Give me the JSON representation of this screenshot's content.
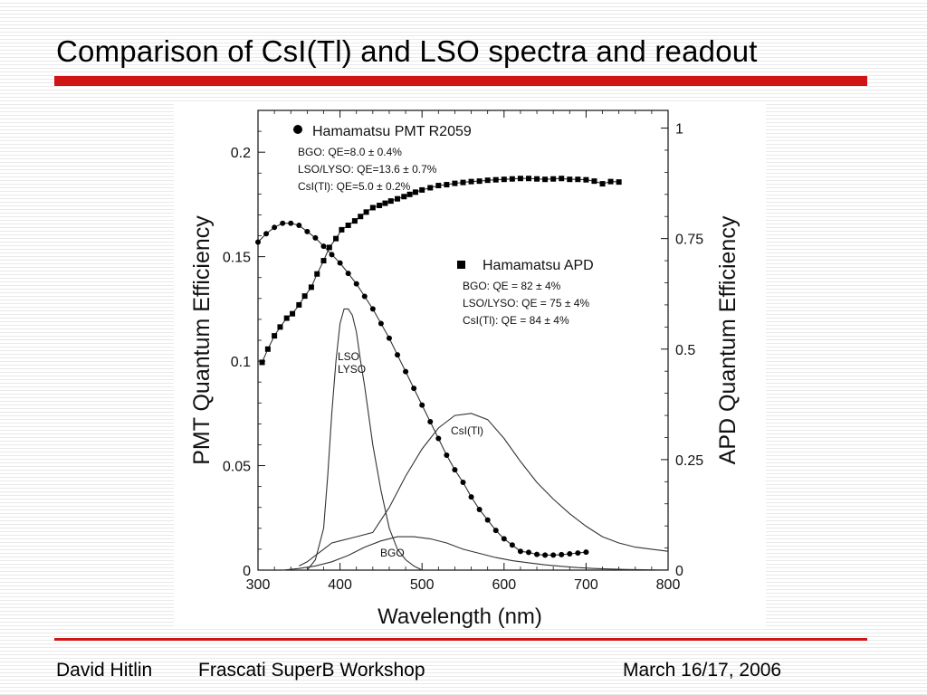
{
  "slide": {
    "title": "Comparison of CsI(Tl) and LSO spectra and readout",
    "title_color": "#d11414"
  },
  "footer": {
    "author": "David Hitlin",
    "event": "Frascati SuperB Workshop",
    "date": "March 16/17, 2006"
  },
  "chart_data": {
    "type": "line",
    "title": "",
    "xlabel": "Wavelength (nm)",
    "ylabel_left": "PMT Quantum Efficiency",
    "ylabel_right": "APD Quantum Efficiency",
    "xlim": [
      300,
      800
    ],
    "ylim_left": [
      0,
      0.22
    ],
    "ylim_right": [
      0,
      1.04
    ],
    "x_ticks": [
      300,
      400,
      500,
      600,
      700,
      800
    ],
    "x_tick_labels": [
      "300",
      "400",
      "500",
      "600",
      "700",
      "800"
    ],
    "y_left_ticks": [
      0,
      0.05,
      0.1,
      0.15,
      0.2
    ],
    "y_left_tick_labels": [
      "0",
      "0.05",
      "0.1",
      "0.15",
      "0.2"
    ],
    "y_right_ticks": [
      0,
      0.25,
      0.5,
      0.75,
      1
    ],
    "y_right_tick_labels": [
      "0",
      "0.25",
      "0.5",
      "0.75",
      "1"
    ],
    "grid": false,
    "series": [
      {
        "name": "Hamamatsu PMT R2059",
        "marker": "circle",
        "axis": "left",
        "x": [
          300,
          310,
          320,
          330,
          340,
          350,
          360,
          370,
          380,
          390,
          400,
          410,
          420,
          430,
          440,
          450,
          460,
          470,
          480,
          490,
          500,
          510,
          520,
          530,
          540,
          550,
          560,
          570,
          580,
          590,
          600,
          610,
          620,
          630,
          640,
          650,
          660,
          670,
          680,
          690,
          700
        ],
        "y": [
          0.157,
          0.161,
          0.164,
          0.166,
          0.166,
          0.165,
          0.162,
          0.159,
          0.155,
          0.151,
          0.147,
          0.142,
          0.137,
          0.131,
          0.125,
          0.118,
          0.111,
          0.103,
          0.095,
          0.087,
          0.079,
          0.071,
          0.063,
          0.055,
          0.048,
          0.042,
          0.035,
          0.029,
          0.024,
          0.019,
          0.015,
          0.012,
          0.009,
          0.0085,
          0.0075,
          0.0072,
          0.0072,
          0.0074,
          0.0078,
          0.0082,
          0.0086
        ]
      },
      {
        "name": "Hamamatsu APD",
        "marker": "square",
        "axis": "right",
        "x": [
          305,
          312,
          320,
          327,
          335,
          342,
          350,
          357,
          365,
          372,
          380,
          387,
          395,
          402,
          410,
          418,
          425,
          432,
          440,
          448,
          455,
          462,
          470,
          478,
          485,
          492,
          500,
          510,
          520,
          530,
          540,
          550,
          560,
          570,
          580,
          590,
          600,
          610,
          620,
          630,
          640,
          650,
          660,
          670,
          680,
          690,
          700,
          710,
          720,
          730,
          740
        ],
        "y": [
          0.47,
          0.5,
          0.53,
          0.55,
          0.57,
          0.58,
          0.6,
          0.62,
          0.64,
          0.67,
          0.7,
          0.73,
          0.75,
          0.77,
          0.78,
          0.79,
          0.8,
          0.81,
          0.82,
          0.825,
          0.83,
          0.835,
          0.84,
          0.845,
          0.85,
          0.855,
          0.86,
          0.865,
          0.87,
          0.872,
          0.875,
          0.877,
          0.879,
          0.88,
          0.882,
          0.883,
          0.884,
          0.885,
          0.886,
          0.886,
          0.885,
          0.884,
          0.885,
          0.886,
          0.884,
          0.884,
          0.883,
          0.88,
          0.874,
          0.879,
          0.878
        ]
      },
      {
        "name": "LSO LYSO",
        "marker": "none",
        "axis": "left",
        "x": [
          360,
          370,
          380,
          385,
          390,
          395,
          400,
          405,
          410,
          415,
          420,
          425,
          430,
          440,
          450,
          460,
          470,
          480,
          490,
          500
        ],
        "y": [
          0,
          0.005,
          0.02,
          0.045,
          0.075,
          0.1,
          0.118,
          0.125,
          0.125,
          0.122,
          0.114,
          0.1,
          0.088,
          0.06,
          0.038,
          0.02,
          0.01,
          0.005,
          0.002,
          0
        ]
      },
      {
        "name": "CsI(Tl)",
        "marker": "none",
        "axis": "left",
        "x": [
          350,
          360,
          370,
          380,
          390,
          400,
          420,
          440,
          460,
          480,
          500,
          520,
          540,
          560,
          580,
          600,
          620,
          640,
          660,
          680,
          700,
          720,
          740,
          760,
          780,
          800
        ],
        "y": [
          0.002,
          0.004,
          0.007,
          0.01,
          0.013,
          0.014,
          0.016,
          0.018,
          0.03,
          0.045,
          0.058,
          0.068,
          0.074,
          0.075,
          0.072,
          0.063,
          0.052,
          0.042,
          0.034,
          0.027,
          0.021,
          0.016,
          0.013,
          0.011,
          0.01,
          0.009
        ]
      },
      {
        "name": "BGO",
        "marker": "none",
        "axis": "left",
        "x": [
          330,
          350,
          370,
          390,
          410,
          430,
          450,
          470,
          490,
          510,
          530,
          550,
          570,
          590,
          610,
          630,
          650,
          670,
          690,
          710,
          730,
          750,
          770,
          790,
          800
        ],
        "y": [
          0,
          0.0008,
          0.002,
          0.004,
          0.007,
          0.011,
          0.014,
          0.016,
          0.016,
          0.015,
          0.013,
          0.01,
          0.008,
          0.006,
          0.0045,
          0.0035,
          0.0025,
          0.0018,
          0.0012,
          0.0008,
          0.0005,
          0.0003,
          0.0002,
          0.0001,
          0.0001
        ]
      }
    ],
    "annotations": {
      "pmt_legend": "Hamamatsu PMT R2059",
      "pmt_lines": [
        "BGO: QE=8.0 ± 0.4%",
        "LSO/LYSO: QE=13.6 ± 0.7%",
        "CsI(Tl): QE=5.0 ± 0.2%"
      ],
      "apd_legend": "Hamamatsu APD",
      "apd_lines": [
        "BGO: QE = 82 ± 4%",
        "LSO/LYSO: QE = 75 ± 4%",
        "CsI(Tl): QE = 84 ± 4%"
      ],
      "curve_label_lso": "LSO",
      "curve_label_lyso": "LYSO",
      "curve_label_csi": "CsI(Tl)",
      "curve_label_bgo": "BGO"
    }
  }
}
